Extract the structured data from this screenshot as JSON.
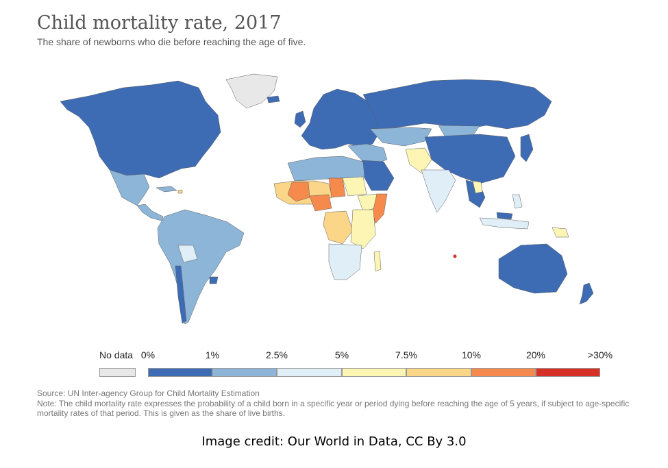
{
  "title": "Child mortality rate, 2017",
  "subtitle": "The share of newborns who die before reaching the age of five.",
  "legend": {
    "no_data_label": "No data",
    "no_data_color": "#e8e8e8",
    "labels": [
      "0%",
      "1%",
      "2.5%",
      "5%",
      "7.5%",
      "10%",
      "20%",
      ">30%"
    ],
    "bins": [
      {
        "range": "0%-1%",
        "color": "#3d6cb5"
      },
      {
        "range": "1%-2.5%",
        "color": "#8db5d8"
      },
      {
        "range": "2.5%-5%",
        "color": "#e0eff7"
      },
      {
        "range": "5%-7.5%",
        "color": "#fdf5b3"
      },
      {
        "range": "7.5%-10%",
        "color": "#fbd588"
      },
      {
        "range": "10%-20%",
        "color": "#f58a4c"
      },
      {
        "range": ">20%",
        "color": "#d73027"
      }
    ]
  },
  "source": "Source: UN Inter-agency Group for Child Mortality Estimation",
  "note": "Note: The child mortality rate expresses the probability of a child born in a specific year or period dying before reaching the age of 5 years, if subject to age-specific mortality rates of that period. This is given as the share of live births.",
  "credit": "Image credit: Our World in Data, CC By 3.0"
}
